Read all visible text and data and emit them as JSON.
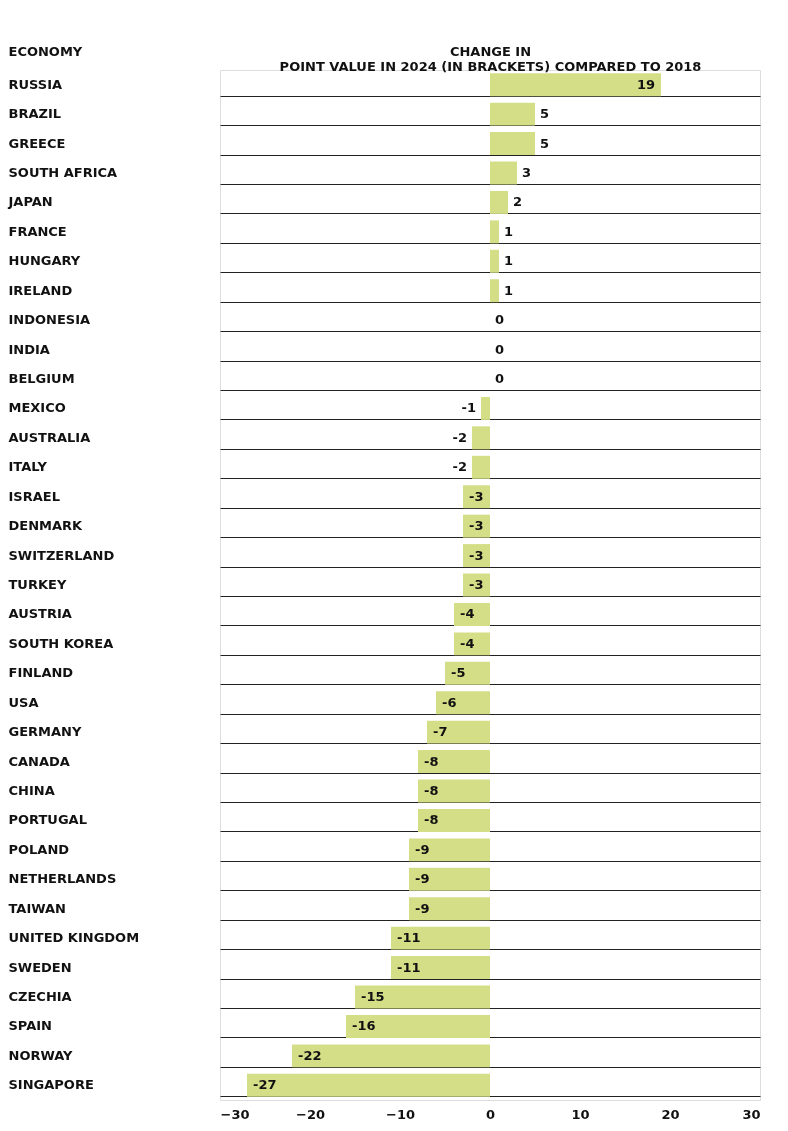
{
  "chart_data": {
    "type": "bar",
    "orientation": "horizontal",
    "ylabel": "ECONOMY",
    "xlabel": "CHANGE IN\nPOINT VALUE IN 2024 (IN BRACKETS) COMPARED TO 2018",
    "categories": [
      "RUSSIA",
      "BRAZIL",
      "GREECE",
      "SOUTH AFRICA",
      "JAPAN",
      "FRANCE",
      "HUNGARY",
      "IRELAND",
      "INDONESIA",
      "INDIA",
      "BELGIUM",
      "MEXICO",
      "AUSTRALIA",
      "ITALY",
      "ISRAEL",
      "DENMARK",
      "SWITZERLAND",
      "TURKEY",
      "AUSTRIA",
      "SOUTH KOREA",
      "FINLAND",
      "USA",
      "GERMANY",
      "CANADA",
      "CHINA",
      "PORTUGAL",
      "POLAND",
      "NETHERLANDS",
      "TAIWAN",
      "UNITED KINGDOM",
      "SWEDEN",
      "CZECHIA",
      "SPAIN",
      "NORWAY",
      "SINGAPORE"
    ],
    "values": [
      19,
      5,
      5,
      3,
      2,
      1,
      1,
      1,
      0,
      0,
      0,
      -1,
      -2,
      -2,
      -3,
      -3,
      -3,
      -3,
      -4,
      -4,
      -5,
      -6,
      -7,
      -8,
      -8,
      -8,
      -9,
      -9,
      -9,
      -11,
      -11,
      -15,
      -16,
      -22,
      -27
    ],
    "color": "#d4de87",
    "xlim": [
      -30,
      30
    ],
    "xticks": [
      -30,
      -20,
      -10,
      0,
      10,
      20,
      30
    ],
    "grid": "y",
    "data_labels": true
  }
}
